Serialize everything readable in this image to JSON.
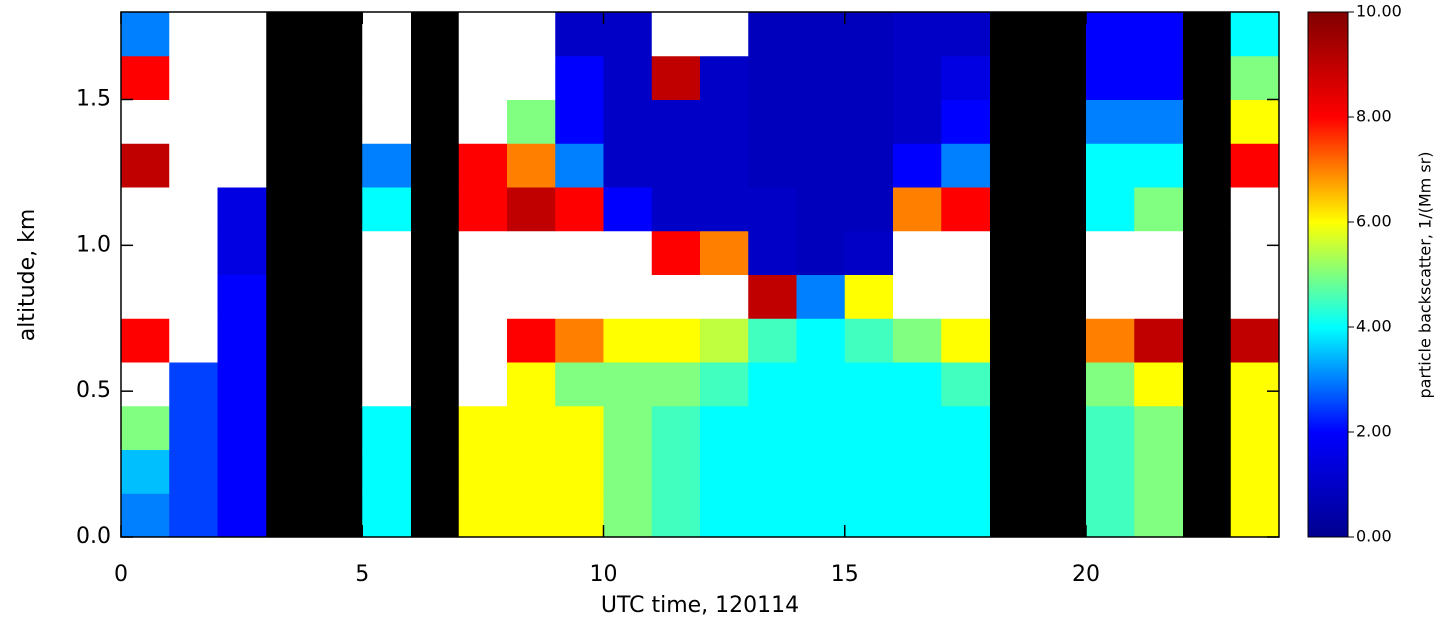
{
  "chart_data": {
    "type": "heatmap",
    "x_label": "UTC time, 120114",
    "y_label": "altitude, km",
    "colorbar_label": "particle backscatter, 1/(Mm sr)",
    "xlim": [
      0,
      24
    ],
    "ylim": [
      0,
      1.8
    ],
    "zlim": [
      0,
      10
    ],
    "xticks": [
      0,
      5,
      10,
      15,
      20
    ],
    "yticks": [
      {
        "value": 0,
        "label": "0.0"
      },
      {
        "value": 0.5,
        "label": "0.5"
      },
      {
        "value": 1,
        "label": "1.0"
      },
      {
        "value": 1.5,
        "label": "1.5"
      }
    ],
    "zticks": [
      {
        "value": 0,
        "label": "0.00"
      },
      {
        "value": 2,
        "label": "2.00"
      },
      {
        "value": 4,
        "label": "4.00"
      },
      {
        "value": 6,
        "label": "6.00"
      },
      {
        "value": 8,
        "label": "8.00"
      },
      {
        "value": 10,
        "label": "10.00"
      }
    ],
    "colormap": [
      "#00008f",
      "#0000ff",
      "#00ffff",
      "#ffff00",
      "#ff0000",
      "#800000"
    ],
    "over_color": "#ffffff",
    "missing_color": "#000000",
    "x_edges": [
      0,
      1,
      2,
      3,
      4,
      5,
      6,
      7,
      8,
      9,
      10,
      11,
      12,
      13,
      14,
      15,
      16,
      17,
      18,
      19,
      20,
      21,
      22,
      23,
      24
    ],
    "y_edges": [
      0,
      0.15,
      0.3,
      0.45,
      0.6,
      0.75,
      0.9,
      1.05,
      1.2,
      1.35,
      1.5,
      1.65,
      1.8
    ],
    "z": [
      [
        3,
        2.5,
        2,
        null,
        null,
        4,
        null,
        6,
        6,
        6,
        5,
        4.5,
        4,
        4,
        4,
        4,
        4,
        4,
        null,
        null,
        4.5,
        5,
        null,
        6
      ],
      [
        3.5,
        2.5,
        2,
        null,
        null,
        4,
        null,
        6,
        6,
        6,
        5,
        4.5,
        4,
        4,
        4,
        4,
        4,
        4,
        null,
        null,
        4.5,
        5,
        null,
        6
      ],
      [
        5,
        2.5,
        2,
        null,
        null,
        4,
        null,
        6,
        6,
        6,
        5,
        4.5,
        4,
        4,
        4,
        4,
        4,
        4,
        null,
        null,
        4.5,
        5,
        null,
        6
      ],
      [
        12,
        2.5,
        2,
        null,
        null,
        12,
        null,
        12,
        6,
        5,
        5,
        5,
        4.5,
        4,
        4,
        4,
        4,
        4.5,
        null,
        null,
        5,
        6,
        null,
        6
      ],
      [
        8,
        12,
        2,
        null,
        null,
        12,
        null,
        12,
        8,
        7,
        6,
        6,
        5.5,
        4.5,
        4,
        4.5,
        5,
        6,
        null,
        null,
        7,
        9,
        null,
        9
      ],
      [
        12,
        12,
        2,
        null,
        null,
        12,
        null,
        12,
        12,
        12,
        12,
        12,
        12,
        9,
        3,
        6,
        12,
        12,
        null,
        null,
        12,
        12,
        null,
        12
      ],
      [
        12,
        12,
        1.5,
        null,
        null,
        12,
        null,
        12,
        12,
        12,
        12,
        8,
        7,
        1,
        0.8,
        1,
        12,
        12,
        null,
        null,
        12,
        12,
        null,
        12
      ],
      [
        12,
        12,
        1.5,
        null,
        null,
        4,
        null,
        8,
        9,
        8,
        2,
        1,
        1,
        1,
        0.8,
        0.8,
        7,
        8,
        null,
        null,
        4,
        5,
        null,
        12
      ],
      [
        9,
        12,
        12,
        null,
        null,
        3,
        null,
        8,
        7,
        3,
        1,
        1,
        1,
        0.8,
        0.8,
        0.8,
        2,
        3,
        null,
        null,
        4,
        4,
        null,
        8
      ],
      [
        12,
        12,
        12,
        null,
        null,
        12,
        null,
        12,
        5,
        2,
        1,
        1,
        1,
        0.8,
        0.8,
        0.8,
        1,
        2,
        null,
        null,
        3,
        3,
        null,
        6
      ],
      [
        8,
        12,
        12,
        null,
        null,
        12,
        null,
        12,
        12,
        2,
        1,
        9,
        1,
        0.8,
        0.8,
        0.8,
        1,
        1.5,
        null,
        null,
        2,
        2,
        null,
        5
      ],
      [
        3,
        12,
        12,
        null,
        null,
        12,
        null,
        12,
        12,
        1,
        1,
        12,
        12,
        0.8,
        0.8,
        0.8,
        1,
        1,
        null,
        null,
        2,
        2,
        null,
        4
      ]
    ]
  }
}
